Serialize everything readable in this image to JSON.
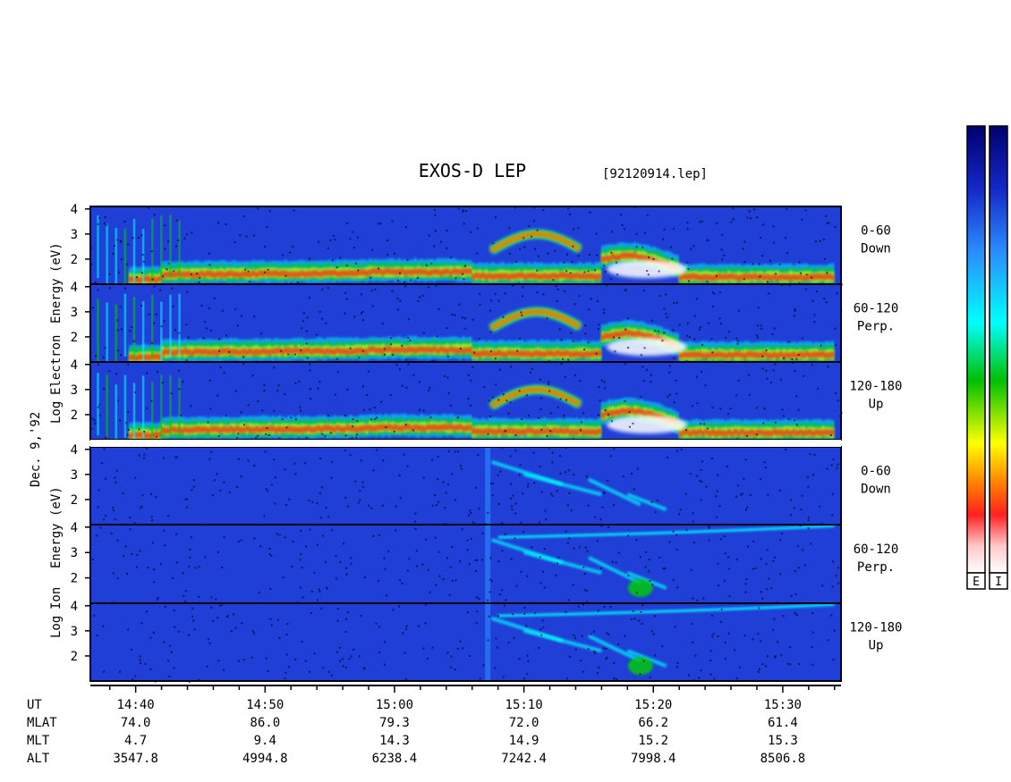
{
  "chart_data": {
    "type": "heatmap",
    "title": "EXOS-D LEP",
    "file_label": "[92120914.lep]",
    "date_label": "Dec. 9,'92",
    "groups": [
      {
        "name": "electron",
        "axis_words": [
          "Log",
          "Electron",
          "Energy",
          "(eV)"
        ]
      },
      {
        "name": "ion",
        "axis_words": [
          "Log",
          "Ion",
          "Energy",
          "(eV)"
        ]
      }
    ],
    "panels": [
      {
        "group": "electron",
        "pitch": "0-60",
        "dir": "Down",
        "y_ticks": [
          "4",
          "3",
          "2"
        ]
      },
      {
        "group": "electron",
        "pitch": "60-120",
        "dir": "Perp.",
        "y_ticks": [
          "4",
          "3",
          "2"
        ]
      },
      {
        "group": "electron",
        "pitch": "120-180",
        "dir": "Up",
        "y_ticks": [
          "4",
          "3",
          "2"
        ]
      },
      {
        "group": "ion",
        "pitch": "0-60",
        "dir": "Down",
        "y_ticks": [
          "4",
          "3",
          "2"
        ]
      },
      {
        "group": "ion",
        "pitch": "60-120",
        "dir": "Perp.",
        "y_ticks": [
          "4",
          "3",
          "2"
        ]
      },
      {
        "group": "ion",
        "pitch": "120-180",
        "dir": "Up",
        "y_ticks": [
          "4",
          "3",
          "2"
        ]
      }
    ],
    "y_range_log10_eV": [
      1,
      4.1
    ],
    "x_range_minutes_UT": [
      876.5,
      934.5
    ],
    "ephemeris": {
      "row_labels": [
        "UT",
        "MLAT",
        "MLT",
        "ALT"
      ],
      "columns": [
        {
          "minute": 880,
          "UT": "14:40",
          "MLAT": "74.0",
          "MLT": "4.7",
          "ALT": "3547.8"
        },
        {
          "minute": 890,
          "UT": "14:50",
          "MLAT": "86.0",
          "MLT": "9.4",
          "ALT": "4994.8"
        },
        {
          "minute": 900,
          "UT": "15:00",
          "MLAT": "79.3",
          "MLT": "14.3",
          "ALT": "6238.4"
        },
        {
          "minute": 910,
          "UT": "15:10",
          "MLAT": "72.0",
          "MLT": "14.9",
          "ALT": "7242.4"
        },
        {
          "minute": 920,
          "UT": "15:20",
          "MLAT": "66.2",
          "MLT": "15.2",
          "ALT": "7998.4"
        },
        {
          "minute": 930,
          "UT": "15:30",
          "MLAT": "61.4",
          "MLT": "15.3",
          "ALT": "8506.8"
        }
      ]
    },
    "colorbars": [
      {
        "label": "E"
      },
      {
        "label": "I"
      }
    ],
    "colors": {
      "background": "#1f3fd6",
      "scale": [
        "#ffffff",
        "#ff9090",
        "#ff1010",
        "#ff8000",
        "#ffff00",
        "#00d000",
        "#00ffff",
        "#2080ff",
        "#1020c0",
        "#00007a"
      ]
    }
  }
}
